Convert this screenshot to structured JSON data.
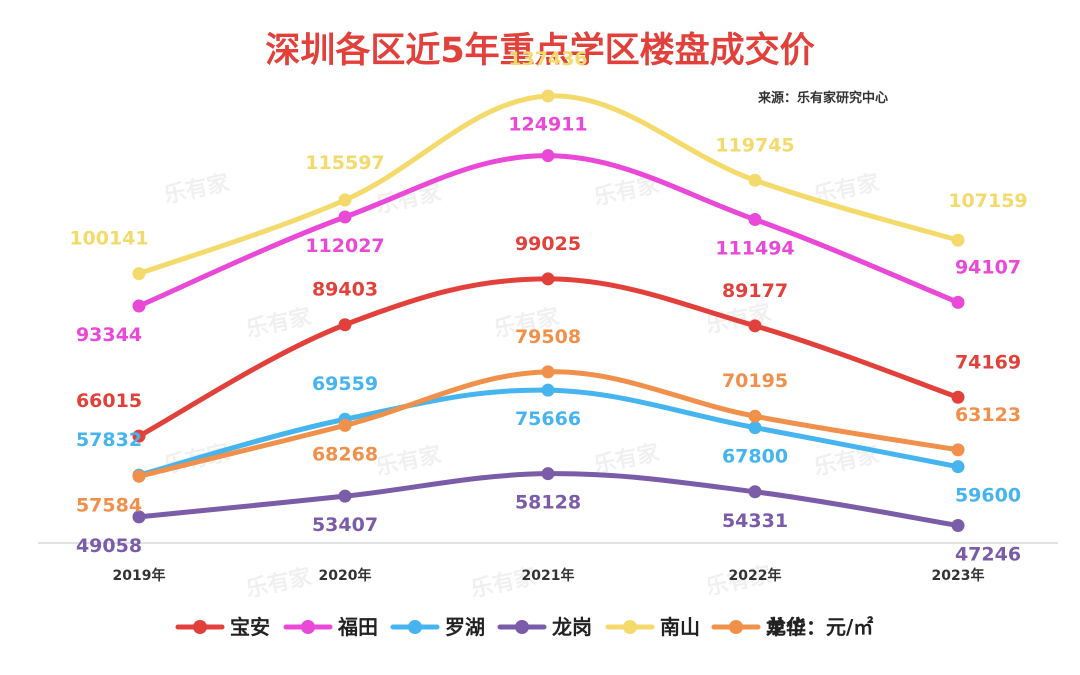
{
  "chart_data": {
    "type": "line",
    "title": "深圳各区近5年重点学区楼盘成交价",
    "source": "来源：乐有家研究中心",
    "watermark": "乐有家",
    "unit_label": "单位：元/㎡",
    "categories": [
      "2019年",
      "2020年",
      "2021年",
      "2022年",
      "2023年"
    ],
    "ylim": [
      40000,
      145000
    ],
    "grid": false,
    "legend_position": "bottom",
    "series": [
      {
        "name": "宝安",
        "color": "#e2413b",
        "values": [
          66015,
          89403,
          99025,
          89177,
          74169
        ]
      },
      {
        "name": "福田",
        "color": "#ea49d8",
        "values": [
          93344,
          112027,
          124911,
          111494,
          94107
        ]
      },
      {
        "name": "罗湖",
        "color": "#45b4ef",
        "values": [
          57832,
          69559,
          75666,
          67800,
          59600
        ]
      },
      {
        "name": "龙岗",
        "color": "#7b5ca8",
        "values": [
          49058,
          53407,
          58128,
          54331,
          47246
        ]
      },
      {
        "name": "南山",
        "color": "#f3da6b",
        "values": [
          100141,
          115597,
          137436,
          119745,
          107159
        ]
      },
      {
        "name": "龙华",
        "color": "#f0904a",
        "values": [
          57584,
          68268,
          79508,
          70195,
          63123
        ]
      }
    ]
  }
}
